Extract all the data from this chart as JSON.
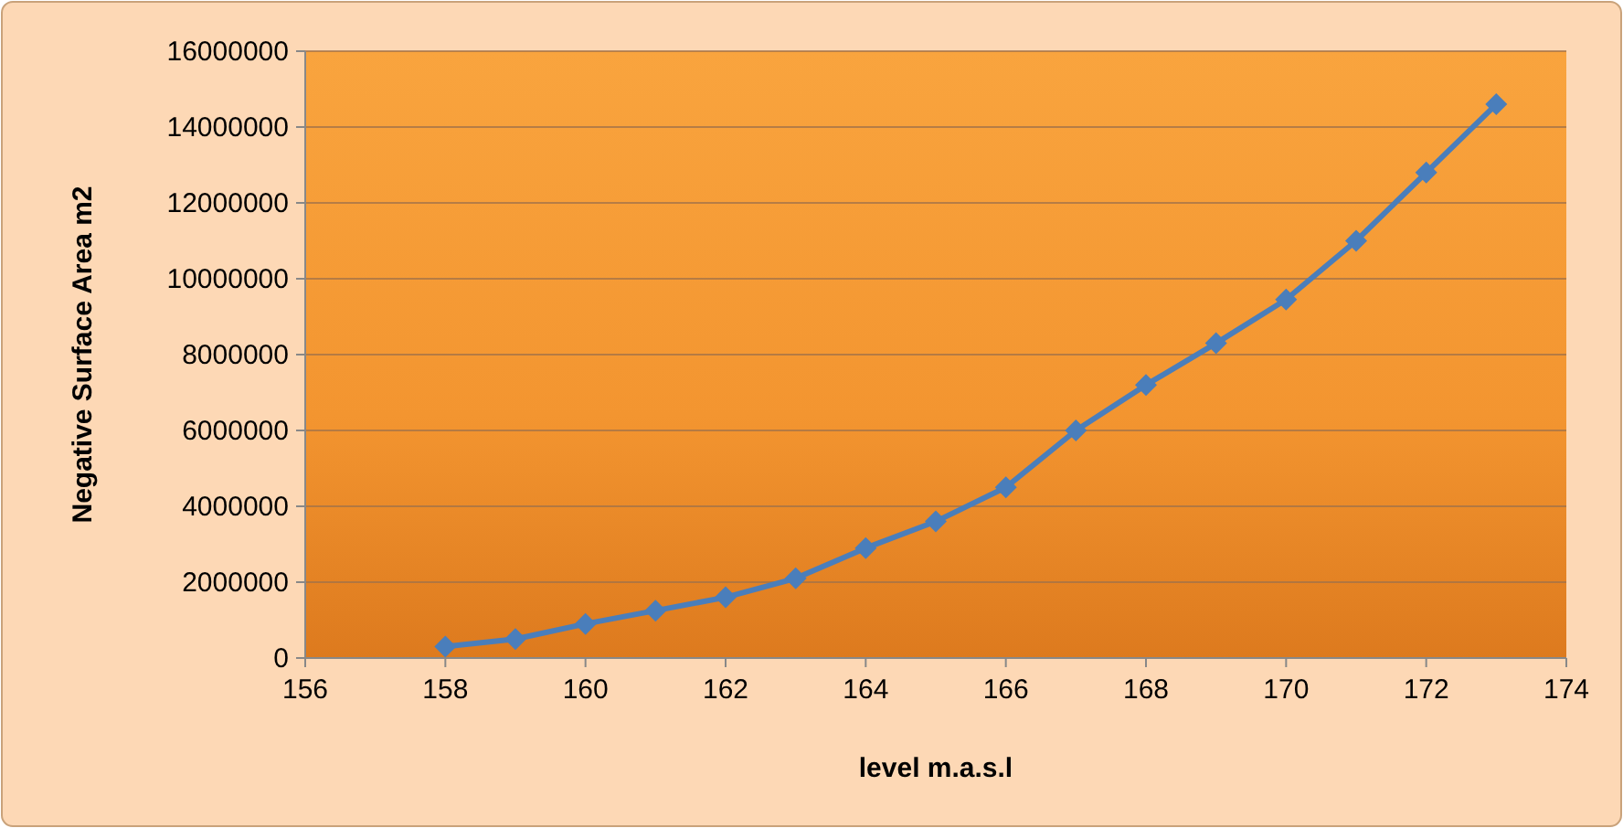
{
  "chart_data": {
    "type": "line",
    "xlabel": "level m.a.s.l",
    "ylabel": "Negative Surface Area m2",
    "x": [
      158,
      159,
      160,
      161,
      162,
      163,
      164,
      165,
      166,
      167,
      168,
      169,
      170,
      171,
      172,
      173
    ],
    "series": [
      {
        "color": "#4a7ebb",
        "values": [
          300000,
          500000,
          900000,
          1250000,
          1600000,
          2100000,
          2900000,
          3600000,
          4500000,
          6000000,
          7200000,
          8300000,
          9450000,
          11000000,
          12800000,
          14600000
        ]
      }
    ],
    "xlim": [
      156,
      174
    ],
    "xticks": [
      156,
      158,
      160,
      162,
      164,
      166,
      168,
      170,
      172,
      174
    ],
    "ylim": [
      0,
      16000000
    ],
    "yticks": [
      0,
      2000000,
      4000000,
      6000000,
      8000000,
      10000000,
      12000000,
      14000000,
      16000000
    ],
    "grid": "y",
    "marker": "diamond",
    "line_style": "solid"
  }
}
